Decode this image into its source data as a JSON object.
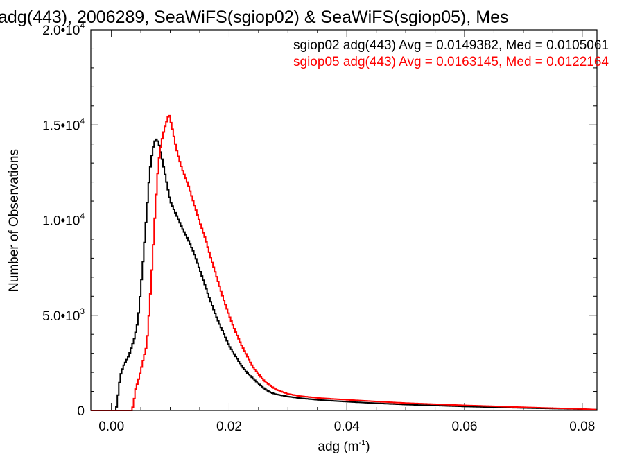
{
  "chart_data": {
    "type": "line",
    "title": "adg(443), 2006289, SeaWiFS(sgiop02) & SeaWiFS(sgiop05), Mes",
    "xlabel_base": "adg (m",
    "xlabel_sup": "-1",
    "xlabel_end": ")",
    "ylabel": "Number of Observations",
    "xlim": [
      -0.0035,
      0.0825
    ],
    "ylim": [
      0,
      20000
    ],
    "x_ticks": [
      0.0,
      0.02,
      0.04,
      0.06,
      0.08
    ],
    "x_tick_labels": [
      "0.00",
      "0.02",
      "0.04",
      "0.06",
      "0.08"
    ],
    "y_ticks": [
      0,
      5000,
      10000,
      15000,
      20000
    ],
    "y_tick_labels": [
      {
        "base": "0",
        "exp": ""
      },
      {
        "base": "5.0•10",
        "exp": "3"
      },
      {
        "base": "1.0•10",
        "exp": "4"
      },
      {
        "base": "1.5•10",
        "exp": "4"
      },
      {
        "base": "2.0•10",
        "exp": "4"
      }
    ],
    "grid": false,
    "legend_position": "top-right",
    "series": [
      {
        "name": "sgiop02",
        "color": "#000000",
        "x": [
          -0.0035,
          0.0008,
          0.0012,
          0.0015,
          0.002,
          0.003,
          0.004,
          0.0045,
          0.005,
          0.0055,
          0.006,
          0.0065,
          0.007,
          0.0075,
          0.008,
          0.0085,
          0.009,
          0.0095,
          0.01,
          0.011,
          0.012,
          0.013,
          0.014,
          0.015,
          0.016,
          0.017,
          0.018,
          0.019,
          0.02,
          0.021,
          0.022,
          0.023,
          0.024,
          0.025,
          0.026,
          0.027,
          0.028,
          0.03,
          0.032,
          0.035,
          0.04,
          0.045,
          0.05,
          0.055,
          0.06,
          0.065,
          0.07,
          0.075,
          0.08,
          0.0825
        ],
        "y": [
          0,
          0,
          1000,
          1800,
          2300,
          2900,
          3900,
          4700,
          6400,
          8300,
          10400,
          12500,
          13700,
          14300,
          14100,
          13400,
          12600,
          11800,
          11000,
          10300,
          9600,
          9000,
          8300,
          7400,
          6500,
          5600,
          4800,
          4100,
          3400,
          2900,
          2400,
          2000,
          1700,
          1400,
          1150,
          950,
          850,
          730,
          650,
          560,
          460,
          380,
          310,
          260,
          210,
          170,
          130,
          100,
          70,
          40
        ]
      },
      {
        "name": "sgiop05",
        "color": "#ff0000",
        "x": [
          -0.0035,
          0.0035,
          0.0038,
          0.004,
          0.0045,
          0.005,
          0.0055,
          0.006,
          0.0065,
          0.007,
          0.0075,
          0.008,
          0.0085,
          0.009,
          0.0095,
          0.0098,
          0.01,
          0.0105,
          0.011,
          0.0115,
          0.012,
          0.013,
          0.014,
          0.015,
          0.016,
          0.017,
          0.018,
          0.019,
          0.02,
          0.021,
          0.022,
          0.023,
          0.024,
          0.025,
          0.026,
          0.027,
          0.028,
          0.03,
          0.032,
          0.035,
          0.04,
          0.045,
          0.05,
          0.055,
          0.06,
          0.065,
          0.07,
          0.075,
          0.08,
          0.0825
        ],
        "y": [
          0,
          0,
          400,
          1000,
          1500,
          2100,
          2800,
          3400,
          5500,
          8000,
          10800,
          13000,
          14100,
          14800,
          15300,
          15600,
          15300,
          14600,
          13800,
          13200,
          12700,
          11900,
          10900,
          9900,
          9000,
          7900,
          6900,
          5900,
          5000,
          4200,
          3500,
          2900,
          2300,
          1900,
          1550,
          1300,
          1100,
          870,
          760,
          660,
          560,
          470,
          390,
          330,
          270,
          220,
          170,
          120,
          80,
          40
        ]
      }
    ],
    "annotations": [
      {
        "text": "sgiop02 adg(443) Avg = 0.0149382, Med = 0.0105061",
        "color": "#000000"
      },
      {
        "text": "sgiop05 adg(443) Avg = 0.0163145, Med = 0.0122164",
        "color": "#ff0000"
      }
    ]
  }
}
